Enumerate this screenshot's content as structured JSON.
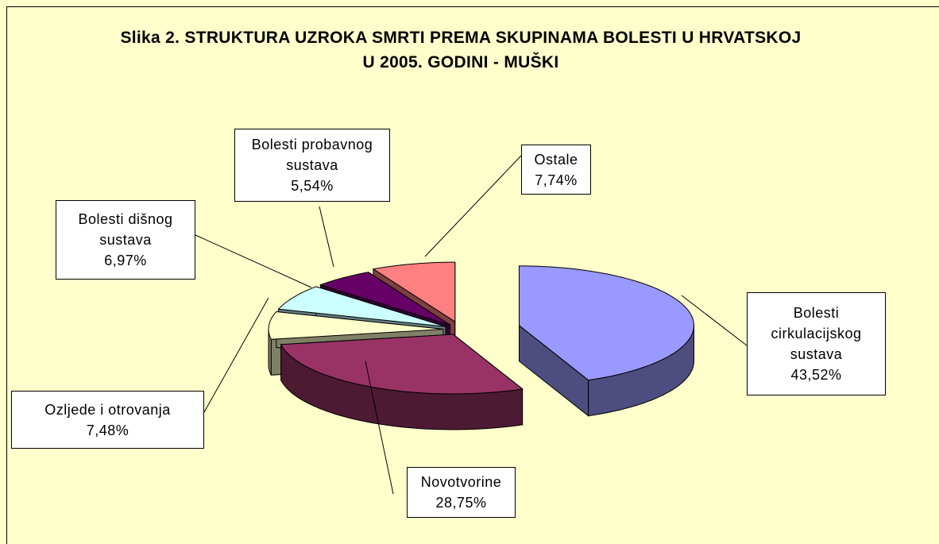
{
  "chart_data": {
    "type": "pie",
    "title": "Slika 2. STRUKTURA UZROKA SMRTI PREMA SKUPINAMA BOLESTI U HRVATSKOJ U 2005. GODINI - MUŠKI",
    "categories": [
      "Bolesti cirkulacijskog sustava",
      "Novotvorine",
      "Ozljede i otrovanja",
      "Bolesti dišnog sustava",
      "Bolesti probavnog sustava",
      "Ostale"
    ],
    "values": [
      43.52,
      28.75,
      7.48,
      6.97,
      5.54,
      7.74
    ],
    "value_labels": [
      "43,52%",
      "28,75%",
      "7,48%",
      "6,97%",
      "5,54%",
      "7,74%"
    ],
    "colors": [
      "#9999ff",
      "#993366",
      "#ffffcc",
      "#ccffff",
      "#660066",
      "#ff8080"
    ]
  }
}
